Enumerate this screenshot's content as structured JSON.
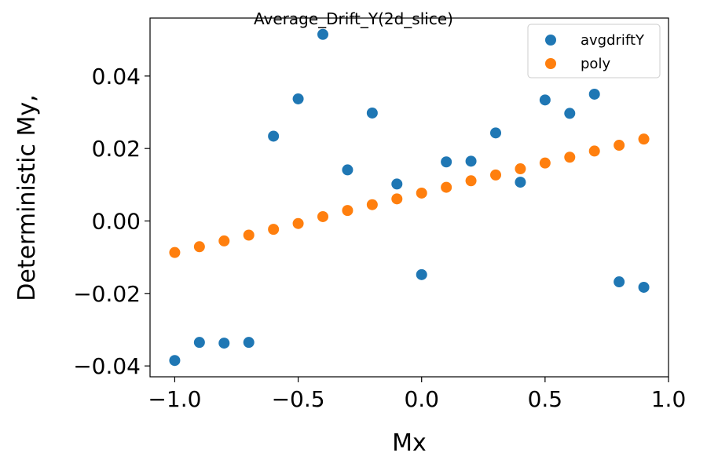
{
  "chart_data": {
    "type": "scatter",
    "title": "Average_Drift_Y(2d_slice)",
    "xlabel": "Mx",
    "ylabel": "Deterministic My,",
    "xlim": [
      -1.1,
      1.0
    ],
    "ylim": [
      -0.043,
      0.056
    ],
    "xticks": [
      -1.0,
      -0.5,
      0.0,
      0.5,
      1.0
    ],
    "xtick_labels": [
      "−1.0",
      "−0.5",
      "0.0",
      "0.5",
      "1.0"
    ],
    "yticks": [
      -0.04,
      -0.02,
      0.0,
      0.02,
      0.04
    ],
    "ytick_labels": [
      "−0.04",
      "−0.02",
      "0.00",
      "0.02",
      "0.04"
    ],
    "grid": false,
    "legend_position": "top-right",
    "series": [
      {
        "name": "avgdriftY",
        "color": "#1f77b4",
        "x": [
          -1.0,
          -0.9,
          -0.8,
          -0.7,
          -0.6,
          -0.5,
          -0.4,
          -0.3,
          -0.2,
          -0.1,
          0.0,
          0.1,
          0.2,
          0.3,
          0.4,
          0.5,
          0.6,
          0.7,
          0.8,
          0.9
        ],
        "y": [
          -0.0385,
          -0.0335,
          -0.0337,
          -0.0335,
          0.0234,
          0.0337,
          0.0515,
          0.0141,
          0.0298,
          0.0102,
          -0.0148,
          0.0163,
          0.0165,
          0.0243,
          0.0107,
          0.0334,
          0.0297,
          0.035,
          -0.0168,
          -0.0183
        ]
      },
      {
        "name": "poly",
        "color": "#ff7f0e",
        "x": [
          -1.0,
          -0.9,
          -0.8,
          -0.7,
          -0.6,
          -0.5,
          -0.4,
          -0.3,
          -0.2,
          -0.1,
          0.0,
          0.1,
          0.2,
          0.3,
          0.4,
          0.5,
          0.6,
          0.7,
          0.8,
          0.9
        ],
        "y": [
          -0.0087,
          -0.0071,
          -0.0055,
          -0.0039,
          -0.0023,
          -0.0007,
          0.0012,
          0.0029,
          0.0045,
          0.0061,
          0.0077,
          0.0093,
          0.0111,
          0.0127,
          0.0144,
          0.016,
          0.0176,
          0.0193,
          0.0209,
          0.0226
        ]
      }
    ]
  }
}
